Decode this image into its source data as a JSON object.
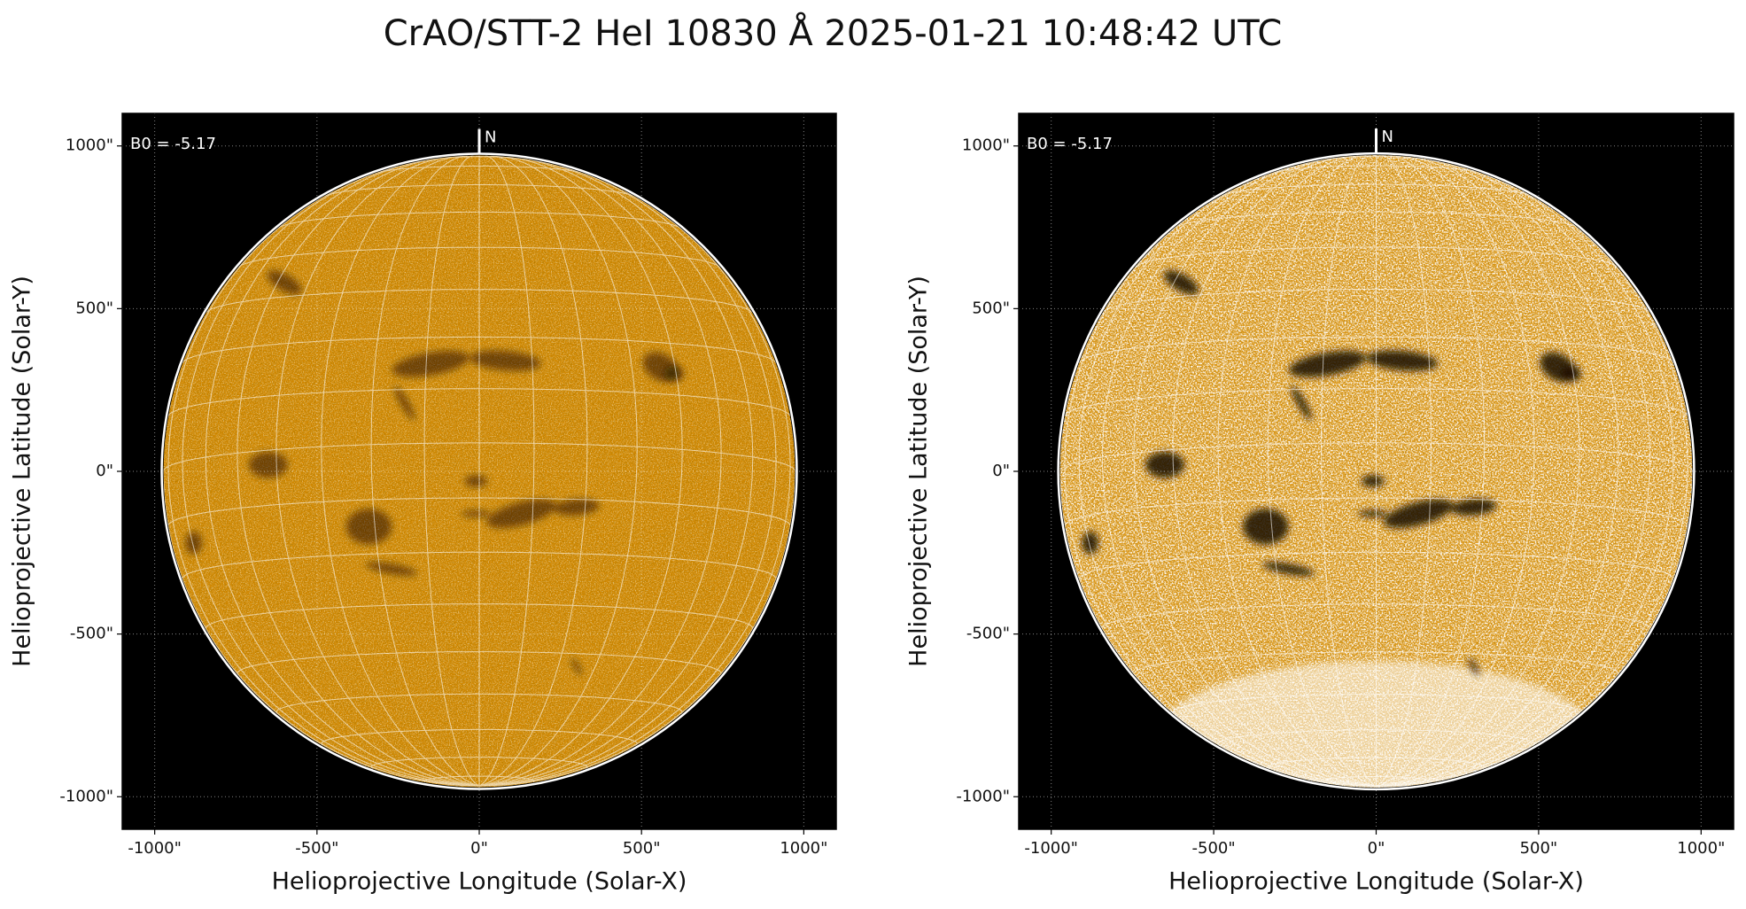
{
  "title": "CrAO/STT-2 HeI 10830 Å 2025-01-21 10:48:42 UTC",
  "chart_data": [
    {
      "type": "image",
      "xlabel": "Helioprojective Longitude (Solar-X)",
      "ylabel": "Helioprojective Latitude (Solar-Y)",
      "annotation": "B0 = -5.17",
      "north_label": "N",
      "color": "#d28800",
      "xlim": [
        -1100,
        1100
      ],
      "ylim": [
        -1100,
        1100
      ],
      "xticks": [
        {
          "value": -1000,
          "label": "-1000\""
        },
        {
          "value": -500,
          "label": "-500\""
        },
        {
          "value": 0,
          "label": "0\""
        },
        {
          "value": 500,
          "label": "500\""
        },
        {
          "value": 1000,
          "label": "1000\""
        }
      ],
      "yticks": [
        {
          "value": -1000,
          "label": "-1000\""
        },
        {
          "value": -500,
          "label": "-500\""
        },
        {
          "value": 0,
          "label": "0\""
        },
        {
          "value": 500,
          "label": "500\""
        },
        {
          "value": 1000,
          "label": "1000\""
        }
      ],
      "grid": true
    },
    {
      "type": "image",
      "xlabel": "Helioprojective Longitude (Solar-X)",
      "ylabel": "Helioprojective Latitude (Solar-Y)",
      "annotation": "B0 = -5.17",
      "north_label": "N",
      "color": "#e09a1a",
      "xlim": [
        -1100,
        1100
      ],
      "ylim": [
        -1100,
        1100
      ],
      "xticks": [
        {
          "value": -1000,
          "label": "-1000\""
        },
        {
          "value": -500,
          "label": "-500\""
        },
        {
          "value": 0,
          "label": "0\""
        },
        {
          "value": 500,
          "label": "500\""
        },
        {
          "value": 1000,
          "label": "1000\""
        }
      ],
      "yticks": [
        {
          "value": -1000,
          "label": "-1000\""
        },
        {
          "value": -500,
          "label": "-500\""
        },
        {
          "value": 0,
          "label": "0\""
        },
        {
          "value": 500,
          "label": "500\""
        },
        {
          "value": 1000,
          "label": "1000\""
        }
      ],
      "grid": true
    }
  ]
}
